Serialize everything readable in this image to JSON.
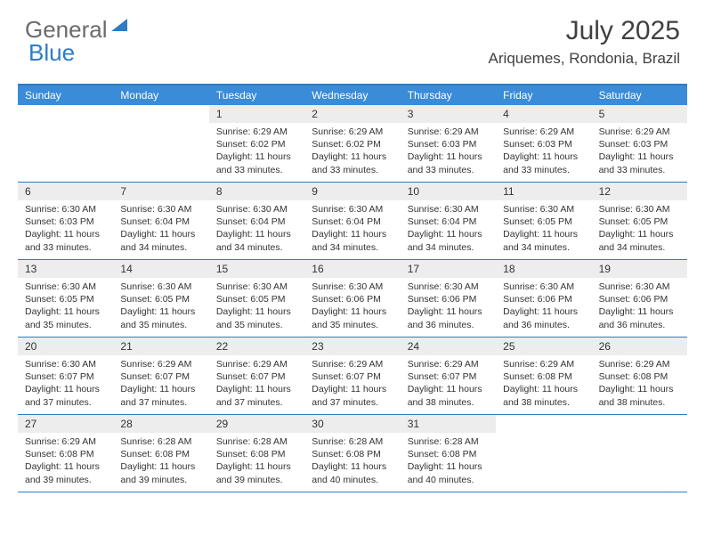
{
  "logo": {
    "text_gray": "General",
    "text_blue": "Blue"
  },
  "title": "July 2025",
  "location": "Ariquemes, Rondonia, Brazil",
  "colors": {
    "header_bar": "#3a8bd8",
    "rule": "#2d7cc5",
    "daynum_bg": "#ededed",
    "text": "#333333",
    "logo_gray": "#6b6b6b",
    "logo_blue": "#2d7cc5",
    "bg": "#ffffff"
  },
  "daynames": [
    "Sunday",
    "Monday",
    "Tuesday",
    "Wednesday",
    "Thursday",
    "Friday",
    "Saturday"
  ],
  "weeks": [
    [
      null,
      null,
      {
        "n": "1",
        "sr": "6:29 AM",
        "ss": "6:02 PM",
        "dl": "11 hours and 33 minutes."
      },
      {
        "n": "2",
        "sr": "6:29 AM",
        "ss": "6:02 PM",
        "dl": "11 hours and 33 minutes."
      },
      {
        "n": "3",
        "sr": "6:29 AM",
        "ss": "6:03 PM",
        "dl": "11 hours and 33 minutes."
      },
      {
        "n": "4",
        "sr": "6:29 AM",
        "ss": "6:03 PM",
        "dl": "11 hours and 33 minutes."
      },
      {
        "n": "5",
        "sr": "6:29 AM",
        "ss": "6:03 PM",
        "dl": "11 hours and 33 minutes."
      }
    ],
    [
      {
        "n": "6",
        "sr": "6:30 AM",
        "ss": "6:03 PM",
        "dl": "11 hours and 33 minutes."
      },
      {
        "n": "7",
        "sr": "6:30 AM",
        "ss": "6:04 PM",
        "dl": "11 hours and 34 minutes."
      },
      {
        "n": "8",
        "sr": "6:30 AM",
        "ss": "6:04 PM",
        "dl": "11 hours and 34 minutes."
      },
      {
        "n": "9",
        "sr": "6:30 AM",
        "ss": "6:04 PM",
        "dl": "11 hours and 34 minutes."
      },
      {
        "n": "10",
        "sr": "6:30 AM",
        "ss": "6:04 PM",
        "dl": "11 hours and 34 minutes."
      },
      {
        "n": "11",
        "sr": "6:30 AM",
        "ss": "6:05 PM",
        "dl": "11 hours and 34 minutes."
      },
      {
        "n": "12",
        "sr": "6:30 AM",
        "ss": "6:05 PM",
        "dl": "11 hours and 34 minutes."
      }
    ],
    [
      {
        "n": "13",
        "sr": "6:30 AM",
        "ss": "6:05 PM",
        "dl": "11 hours and 35 minutes."
      },
      {
        "n": "14",
        "sr": "6:30 AM",
        "ss": "6:05 PM",
        "dl": "11 hours and 35 minutes."
      },
      {
        "n": "15",
        "sr": "6:30 AM",
        "ss": "6:05 PM",
        "dl": "11 hours and 35 minutes."
      },
      {
        "n": "16",
        "sr": "6:30 AM",
        "ss": "6:06 PM",
        "dl": "11 hours and 35 minutes."
      },
      {
        "n": "17",
        "sr": "6:30 AM",
        "ss": "6:06 PM",
        "dl": "11 hours and 36 minutes."
      },
      {
        "n": "18",
        "sr": "6:30 AM",
        "ss": "6:06 PM",
        "dl": "11 hours and 36 minutes."
      },
      {
        "n": "19",
        "sr": "6:30 AM",
        "ss": "6:06 PM",
        "dl": "11 hours and 36 minutes."
      }
    ],
    [
      {
        "n": "20",
        "sr": "6:30 AM",
        "ss": "6:07 PM",
        "dl": "11 hours and 37 minutes."
      },
      {
        "n": "21",
        "sr": "6:29 AM",
        "ss": "6:07 PM",
        "dl": "11 hours and 37 minutes."
      },
      {
        "n": "22",
        "sr": "6:29 AM",
        "ss": "6:07 PM",
        "dl": "11 hours and 37 minutes."
      },
      {
        "n": "23",
        "sr": "6:29 AM",
        "ss": "6:07 PM",
        "dl": "11 hours and 37 minutes."
      },
      {
        "n": "24",
        "sr": "6:29 AM",
        "ss": "6:07 PM",
        "dl": "11 hours and 38 minutes."
      },
      {
        "n": "25",
        "sr": "6:29 AM",
        "ss": "6:08 PM",
        "dl": "11 hours and 38 minutes."
      },
      {
        "n": "26",
        "sr": "6:29 AM",
        "ss": "6:08 PM",
        "dl": "11 hours and 38 minutes."
      }
    ],
    [
      {
        "n": "27",
        "sr": "6:29 AM",
        "ss": "6:08 PM",
        "dl": "11 hours and 39 minutes."
      },
      {
        "n": "28",
        "sr": "6:28 AM",
        "ss": "6:08 PM",
        "dl": "11 hours and 39 minutes."
      },
      {
        "n": "29",
        "sr": "6:28 AM",
        "ss": "6:08 PM",
        "dl": "11 hours and 39 minutes."
      },
      {
        "n": "30",
        "sr": "6:28 AM",
        "ss": "6:08 PM",
        "dl": "11 hours and 40 minutes."
      },
      {
        "n": "31",
        "sr": "6:28 AM",
        "ss": "6:08 PM",
        "dl": "11 hours and 40 minutes."
      },
      null,
      null
    ]
  ],
  "labels": {
    "sunrise": "Sunrise:",
    "sunset": "Sunset:",
    "daylight": "Daylight:"
  }
}
